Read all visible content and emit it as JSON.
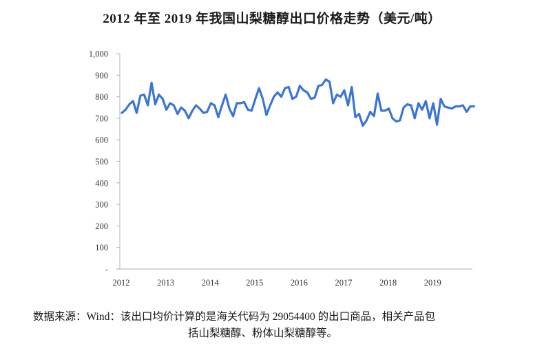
{
  "title": "2012 年至 2019 年我国山梨糖醇出口价格走势（美元/吨）",
  "source": {
    "line1": "数据来源：Wind：该出口均价计算的是海关代码为 29054400 的出口商品，相关产品包",
    "line2": "括山梨糖醇、粉体山梨糖醇等。"
  },
  "colors": {
    "line": "#3a74d6",
    "axis": "#bdbdbd",
    "text": "#333333"
  },
  "chart_data": {
    "type": "line",
    "title": "2012 年至 2019 年我国山梨糖醇出口价格走势（美元/吨）",
    "xlabel": "",
    "ylabel": "美元/吨",
    "ylim": [
      0,
      1000
    ],
    "yticks": [
      "-",
      "100",
      "200",
      "300",
      "400",
      "500",
      "600",
      "700",
      "800",
      "900",
      "1,000"
    ],
    "xticks": [
      "2012",
      "2013",
      "2014",
      "2015",
      "2016",
      "2017",
      "2018",
      "2019"
    ],
    "grid": false,
    "legend": null,
    "series": [
      {
        "name": "山梨糖醇出口价格",
        "x_start": "2012-01",
        "frequency": "monthly",
        "values": [
          725,
          740,
          765,
          780,
          725,
          805,
          810,
          760,
          865,
          765,
          810,
          790,
          740,
          770,
          760,
          720,
          750,
          735,
          700,
          735,
          760,
          745,
          725,
          730,
          770,
          760,
          705,
          760,
          810,
          745,
          710,
          770,
          770,
          775,
          740,
          735,
          790,
          840,
          790,
          715,
          760,
          800,
          820,
          800,
          840,
          845,
          790,
          800,
          850,
          830,
          820,
          790,
          795,
          850,
          855,
          880,
          870,
          770,
          810,
          800,
          830,
          760,
          845,
          705,
          720,
          665,
          690,
          730,
          710,
          815,
          735,
          735,
          745,
          700,
          685,
          690,
          750,
          765,
          760,
          700,
          770,
          740,
          780,
          700,
          770,
          670,
          790,
          755,
          750,
          745,
          755,
          755,
          760,
          730,
          755,
          755
        ]
      }
    ]
  }
}
